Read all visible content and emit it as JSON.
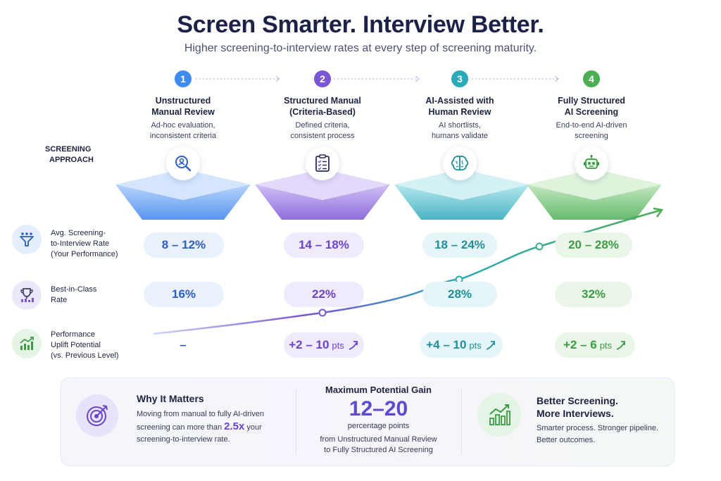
{
  "header": {
    "title": "Screen Smarter. Interview Better.",
    "subtitle": "Higher screening-to-interview rates at every step of screening maturity."
  },
  "colors": {
    "step1": "#3f8cf0",
    "step2": "#7a55d6",
    "step3": "#2aa9b8",
    "step4": "#4cae54"
  },
  "steps": [
    {
      "num": "1",
      "title_line1": "Unstructured",
      "title_line2": "Manual Review",
      "desc_line1": "Ad-hoc evaluation,",
      "desc_line2": "inconsistent criteria",
      "icon": "magnifier-person-icon"
    },
    {
      "num": "2",
      "title_line1": "Structured Manual",
      "title_line2": "(Criteria-Based)",
      "desc_line1": "Defined criteria,",
      "desc_line2": "consistent process",
      "icon": "clipboard-checklist-icon"
    },
    {
      "num": "3",
      "title_line1": "AI-Assisted with",
      "title_line2": "Human Review",
      "desc_line1": "AI shortlists,",
      "desc_line2": "humans validate",
      "icon": "brain-icon"
    },
    {
      "num": "4",
      "title_line1": "Fully Structured",
      "title_line2": "AI Screening",
      "desc_line1": "End-to-end AI-driven",
      "desc_line2": "screening",
      "icon": "robot-icon"
    }
  ],
  "screening_approach_label": {
    "line1": "SCREENING",
    "line2": "APPROACH"
  },
  "rows": {
    "avg": {
      "line1": "Avg. Screening-",
      "line2": "to-Interview Rate",
      "line3": "(Your Performance)",
      "icon": "funnel-people-icon",
      "values": [
        "8 – 12%",
        "14 – 18%",
        "18 – 24%",
        "20 – 28%"
      ]
    },
    "best": {
      "line1": "Best-in-Class",
      "line2": "Rate",
      "icon": "trophy-icon",
      "values": [
        "16%",
        "22%",
        "28%",
        "32%"
      ]
    },
    "uplift": {
      "line1": "Performance",
      "line2": "Uplift Potential",
      "line3": "(vs. Previous Level)",
      "icon": "growth-chart-icon",
      "values": [
        "–",
        "+2 – 10",
        "+4 – 10",
        "+2 – 6"
      ],
      "unit": "pts"
    }
  },
  "bottom": {
    "why": {
      "title": "Why It Matters",
      "line1": "Moving from manual to fully AI-driven",
      "line2a": "screening can more than",
      "highlight": "2.5x",
      "line2b": "your",
      "line3": "screening-to-interview rate.",
      "icon": "target-icon"
    },
    "gain": {
      "title": "Maximum Potential Gain",
      "value": "12–20",
      "unit": "percentage points",
      "line1": "from Unstructured Manual Review",
      "line2": "to Fully Structured AI Screening"
    },
    "better": {
      "title_line1": "Better Screening.",
      "title_line2": "More Interviews.",
      "line1": "Smarter process. Stronger pipeline.",
      "line2": "Better outcomes.",
      "icon": "rising-bars-icon"
    }
  }
}
